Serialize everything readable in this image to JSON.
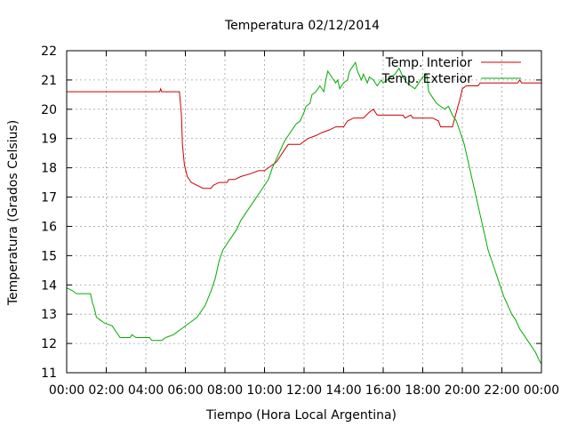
{
  "chart_data": {
    "type": "line",
    "title": "Temperatura 02/12/2014",
    "xlabel": "Tiempo (Hora Local Argentina)",
    "ylabel": "Temperatura (Grados Celsius)",
    "xlim": [
      0,
      24
    ],
    "ylim": [
      11,
      22
    ],
    "x_ticks": [
      0,
      2,
      4,
      6,
      8,
      10,
      12,
      14,
      16,
      18,
      20,
      22,
      24
    ],
    "x_tick_labels": [
      "00:00",
      "02:00",
      "04:00",
      "06:00",
      "08:00",
      "10:00",
      "12:00",
      "14:00",
      "16:00",
      "18:00",
      "20:00",
      "22:00",
      "00:00"
    ],
    "y_ticks": [
      11,
      12,
      13,
      14,
      15,
      16,
      17,
      18,
      19,
      20,
      21,
      22
    ],
    "y_tick_labels": [
      "11",
      "12",
      "13",
      "14",
      "15",
      "16",
      "17",
      "18",
      "19",
      "20",
      "21",
      "22"
    ],
    "grid": true,
    "legend_position": "top-right",
    "series": [
      {
        "name": "Temp. Interior",
        "color": "#cc0000",
        "points": [
          [
            0.0,
            20.6
          ],
          [
            4.7,
            20.6
          ],
          [
            4.75,
            20.7
          ],
          [
            4.8,
            20.6
          ],
          [
            5.7,
            20.6
          ],
          [
            5.8,
            19.8
          ],
          [
            5.85,
            18.8
          ],
          [
            5.95,
            18.1
          ],
          [
            6.1,
            17.7
          ],
          [
            6.3,
            17.5
          ],
          [
            6.6,
            17.4
          ],
          [
            6.9,
            17.3
          ],
          [
            7.3,
            17.3
          ],
          [
            7.4,
            17.4
          ],
          [
            7.7,
            17.5
          ],
          [
            8.1,
            17.5
          ],
          [
            8.2,
            17.6
          ],
          [
            8.5,
            17.6
          ],
          [
            8.8,
            17.7
          ],
          [
            9.3,
            17.8
          ],
          [
            9.7,
            17.9
          ],
          [
            10.0,
            17.9
          ],
          [
            10.2,
            18.0
          ],
          [
            10.6,
            18.2
          ],
          [
            10.9,
            18.5
          ],
          [
            11.2,
            18.8
          ],
          [
            11.8,
            18.8
          ],
          [
            12.0,
            18.9
          ],
          [
            12.2,
            19.0
          ],
          [
            12.6,
            19.1
          ],
          [
            12.9,
            19.2
          ],
          [
            13.3,
            19.3
          ],
          [
            13.6,
            19.4
          ],
          [
            14.0,
            19.4
          ],
          [
            14.2,
            19.6
          ],
          [
            14.5,
            19.7
          ],
          [
            15.0,
            19.7
          ],
          [
            15.3,
            19.9
          ],
          [
            15.5,
            20.0
          ],
          [
            15.7,
            19.8
          ],
          [
            17.0,
            19.8
          ],
          [
            17.1,
            19.7
          ],
          [
            17.4,
            19.8
          ],
          [
            17.5,
            19.7
          ],
          [
            18.5,
            19.7
          ],
          [
            18.8,
            19.6
          ],
          [
            18.9,
            19.4
          ],
          [
            19.5,
            19.4
          ],
          [
            19.7,
            19.9
          ],
          [
            19.9,
            20.4
          ],
          [
            20.0,
            20.7
          ],
          [
            20.2,
            20.8
          ],
          [
            20.8,
            20.8
          ],
          [
            20.9,
            20.9
          ],
          [
            22.8,
            20.9
          ],
          [
            22.9,
            21.0
          ],
          [
            23.0,
            20.9
          ],
          [
            24.0,
            20.9
          ]
        ]
      },
      {
        "name": "Temp. Exterior",
        "color": "#00aa00",
        "points": [
          [
            0.0,
            13.9
          ],
          [
            0.3,
            13.8
          ],
          [
            0.5,
            13.7
          ],
          [
            1.2,
            13.7
          ],
          [
            1.3,
            13.4
          ],
          [
            1.4,
            13.2
          ],
          [
            1.5,
            12.9
          ],
          [
            1.7,
            12.8
          ],
          [
            1.9,
            12.7
          ],
          [
            2.3,
            12.6
          ],
          [
            2.5,
            12.4
          ],
          [
            2.7,
            12.2
          ],
          [
            3.2,
            12.2
          ],
          [
            3.3,
            12.3
          ],
          [
            3.5,
            12.2
          ],
          [
            4.2,
            12.2
          ],
          [
            4.3,
            12.1
          ],
          [
            4.8,
            12.1
          ],
          [
            5.0,
            12.2
          ],
          [
            5.4,
            12.3
          ],
          [
            5.8,
            12.5
          ],
          [
            6.2,
            12.7
          ],
          [
            6.6,
            12.9
          ],
          [
            7.0,
            13.3
          ],
          [
            7.3,
            13.8
          ],
          [
            7.5,
            14.2
          ],
          [
            7.7,
            14.8
          ],
          [
            7.9,
            15.2
          ],
          [
            8.1,
            15.4
          ],
          [
            8.4,
            15.7
          ],
          [
            8.6,
            15.9
          ],
          [
            8.8,
            16.2
          ],
          [
            9.0,
            16.4
          ],
          [
            9.2,
            16.6
          ],
          [
            9.5,
            16.9
          ],
          [
            9.8,
            17.2
          ],
          [
            10.0,
            17.4
          ],
          [
            10.2,
            17.6
          ],
          [
            10.4,
            18.0
          ],
          [
            10.6,
            18.3
          ],
          [
            10.8,
            18.6
          ],
          [
            11.0,
            18.9
          ],
          [
            11.2,
            19.1
          ],
          [
            11.4,
            19.3
          ],
          [
            11.6,
            19.5
          ],
          [
            11.8,
            19.6
          ],
          [
            12.0,
            19.9
          ],
          [
            12.1,
            20.1
          ],
          [
            12.3,
            20.2
          ],
          [
            12.4,
            20.5
          ],
          [
            12.6,
            20.6
          ],
          [
            12.8,
            20.8
          ],
          [
            13.0,
            20.6
          ],
          [
            13.1,
            21.0
          ],
          [
            13.2,
            21.3
          ],
          [
            13.4,
            21.1
          ],
          [
            13.6,
            20.9
          ],
          [
            13.7,
            21.0
          ],
          [
            13.8,
            20.7
          ],
          [
            14.0,
            20.9
          ],
          [
            14.2,
            21.0
          ],
          [
            14.3,
            21.3
          ],
          [
            14.5,
            21.5
          ],
          [
            14.6,
            21.6
          ],
          [
            14.7,
            21.3
          ],
          [
            14.9,
            21.0
          ],
          [
            15.0,
            21.2
          ],
          [
            15.2,
            20.9
          ],
          [
            15.3,
            21.1
          ],
          [
            15.5,
            21.0
          ],
          [
            15.7,
            20.8
          ],
          [
            15.9,
            21.0
          ],
          [
            16.0,
            20.9
          ],
          [
            16.2,
            21.0
          ],
          [
            16.4,
            21.1
          ],
          [
            16.6,
            21.2
          ],
          [
            16.8,
            21.4
          ],
          [
            17.0,
            21.1
          ],
          [
            17.2,
            20.9
          ],
          [
            17.4,
            20.8
          ],
          [
            17.6,
            20.7
          ],
          [
            17.8,
            20.9
          ],
          [
            18.0,
            21.1
          ],
          [
            18.2,
            21.2
          ],
          [
            18.3,
            20.6
          ],
          [
            18.5,
            20.4
          ],
          [
            18.7,
            20.2
          ],
          [
            18.9,
            20.1
          ],
          [
            19.1,
            20.0
          ],
          [
            19.3,
            20.1
          ],
          [
            19.5,
            19.8
          ],
          [
            19.7,
            19.6
          ],
          [
            19.9,
            19.2
          ],
          [
            20.1,
            18.8
          ],
          [
            20.3,
            18.2
          ],
          [
            20.5,
            17.6
          ],
          [
            20.7,
            17.0
          ],
          [
            20.9,
            16.4
          ],
          [
            21.1,
            15.8
          ],
          [
            21.3,
            15.2
          ],
          [
            21.5,
            14.8
          ],
          [
            21.7,
            14.4
          ],
          [
            21.9,
            14.0
          ],
          [
            22.1,
            13.6
          ],
          [
            22.3,
            13.3
          ],
          [
            22.5,
            13.0
          ],
          [
            22.7,
            12.8
          ],
          [
            22.9,
            12.5
          ],
          [
            23.1,
            12.3
          ],
          [
            23.3,
            12.1
          ],
          [
            23.5,
            11.9
          ],
          [
            23.7,
            11.7
          ],
          [
            23.9,
            11.4
          ],
          [
            24.0,
            11.3
          ]
        ]
      }
    ]
  }
}
